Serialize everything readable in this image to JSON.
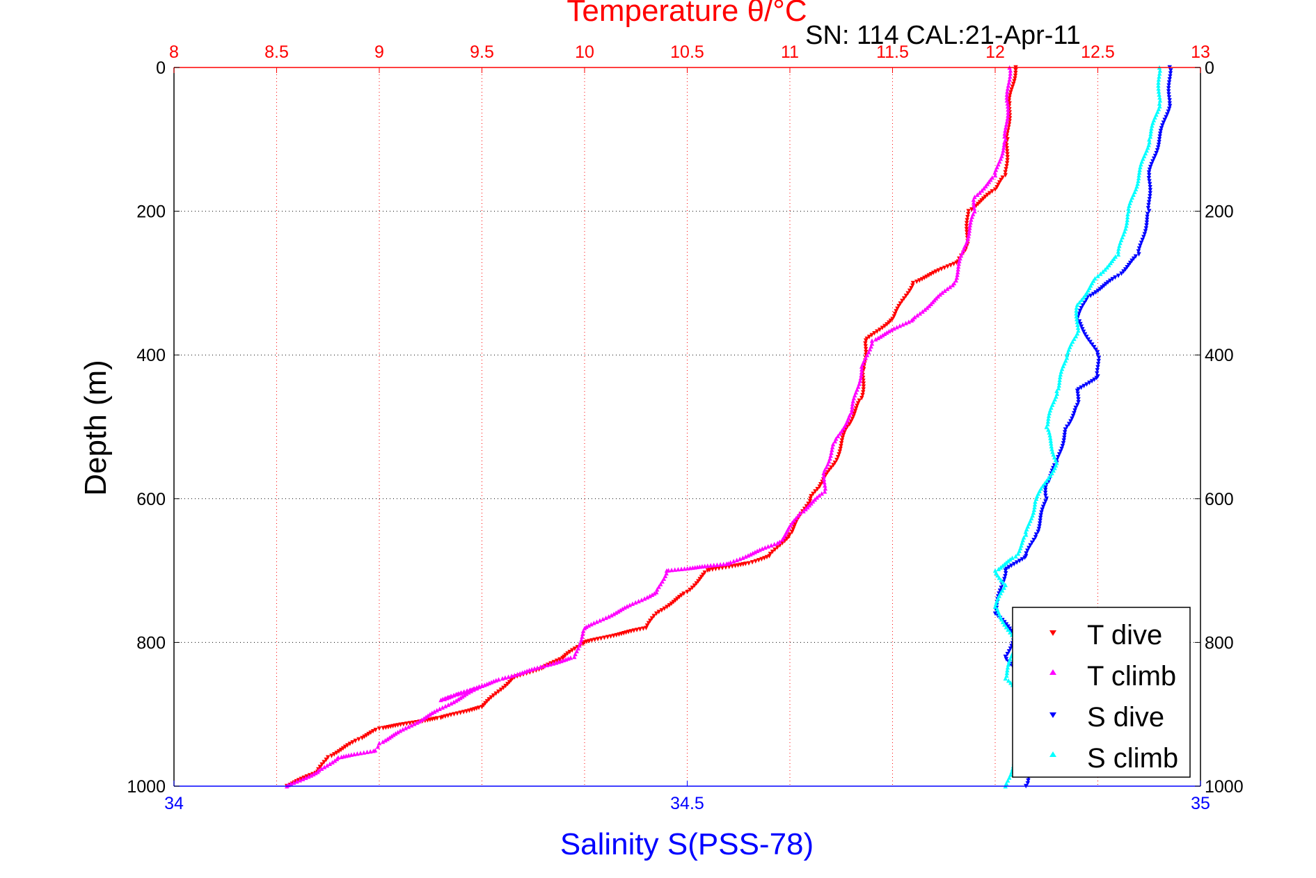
{
  "chart_data": {
    "type": "scatter",
    "title": "Temperature θ/°C",
    "subtitle": "SN: 114  CAL:21-Apr-11",
    "ylabel": "Depth (m)",
    "xlabel": "Salinity S(PSS-78)",
    "x_top_label": "Temperature θ/°C",
    "x_bottom_label": "Salinity S(PSS-78)",
    "x_top_range": [
      8,
      13
    ],
    "x_bottom_range": [
      34,
      35
    ],
    "ylim": [
      0,
      1000
    ],
    "y_reversed": true,
    "top_ticks": [
      "8",
      "8.5",
      "9",
      "9.5",
      "10",
      "10.5",
      "11",
      "11.5",
      "12",
      "12.5",
      "13"
    ],
    "bottom_ticks": [
      "34",
      "34.5",
      "35"
    ],
    "y_ticks": [
      "0",
      "200",
      "400",
      "600",
      "800",
      "1000"
    ],
    "grid": true,
    "legend_position": "bottom-right",
    "colors": {
      "temperature_axis": "#ff0000",
      "salinity_axis": "#0000ff",
      "T dive": "#ff0000",
      "T climb": "#ff00ff",
      "S dive": "#0000ff",
      "S climb": "#00ffff"
    },
    "series": [
      {
        "name": "T dive",
        "axis": "temperature",
        "marker": "triangle-down",
        "x": [
          12.1,
          12.07,
          12.06,
          12.05,
          12.0,
          11.87,
          11.86,
          11.82,
          11.6,
          11.5,
          11.37,
          11.36,
          11.35,
          11.28,
          11.22,
          11.15,
          11.1,
          11.0,
          10.9,
          10.8,
          10.6,
          10.5,
          10.35,
          10.3,
          10.0,
          9.9,
          9.8,
          9.65,
          9.5,
          9.3,
          9.0,
          8.9,
          8.75,
          8.7,
          8.55
        ],
        "y": [
          0,
          50,
          100,
          150,
          170,
          200,
          250,
          270,
          300,
          350,
          380,
          420,
          460,
          500,
          550,
          580,
          600,
          650,
          680,
          690,
          700,
          730,
          760,
          780,
          800,
          820,
          835,
          850,
          890,
          905,
          920,
          935,
          960,
          980,
          1000
        ]
      },
      {
        "name": "T climb",
        "axis": "temperature",
        "marker": "triangle-up",
        "x": [
          12.07,
          12.06,
          12.05,
          12.0,
          11.9,
          11.9,
          11.85,
          11.8,
          11.6,
          11.4,
          11.35,
          11.3,
          11.22,
          11.17,
          11.17,
          11.05,
          10.95,
          10.7,
          10.4,
          10.35,
          10.0,
          9.95,
          9.6,
          9.3,
          9.5,
          9.0,
          8.98,
          8.8,
          8.7,
          8.55
        ],
        "y": [
          0,
          50,
          100,
          150,
          180,
          200,
          250,
          300,
          350,
          380,
          420,
          480,
          520,
          560,
          590,
          620,
          660,
          690,
          700,
          730,
          780,
          820,
          850,
          880,
          860,
          940,
          950,
          960,
          980,
          1000
        ]
      },
      {
        "name": "S dive",
        "axis": "salinity",
        "marker": "triangle-down",
        "x": [
          34.97,
          34.97,
          34.96,
          34.95,
          34.95,
          34.94,
          34.92,
          34.89,
          34.88,
          34.9,
          34.9,
          34.88,
          34.88,
          34.87,
          34.86,
          34.85,
          34.85,
          34.84,
          34.83,
          34.81,
          34.8,
          34.82,
          34.81,
          34.83,
          34.82,
          34.85,
          34.83
        ],
        "y": [
          0,
          50,
          100,
          150,
          200,
          260,
          290,
          320,
          350,
          400,
          430,
          450,
          470,
          500,
          550,
          580,
          600,
          650,
          680,
          700,
          760,
          790,
          820,
          860,
          880,
          900,
          1000
        ]
      },
      {
        "name": "S climb",
        "axis": "salinity",
        "marker": "triangle-up",
        "x": [
          34.96,
          34.96,
          34.95,
          34.94,
          34.93,
          34.92,
          34.9,
          34.88,
          34.88,
          34.87,
          34.86,
          34.85,
          34.86,
          34.84,
          34.83,
          34.82,
          34.8,
          34.81,
          34.8,
          34.82,
          34.81,
          34.83,
          34.82,
          34.81
        ],
        "y": [
          0,
          50,
          100,
          150,
          200,
          260,
          290,
          330,
          370,
          400,
          450,
          500,
          550,
          600,
          650,
          680,
          700,
          720,
          750,
          800,
          850,
          880,
          960,
          1000
        ]
      }
    ],
    "legend": [
      "T dive",
      "T climb",
      "S dive",
      "S climb"
    ]
  }
}
